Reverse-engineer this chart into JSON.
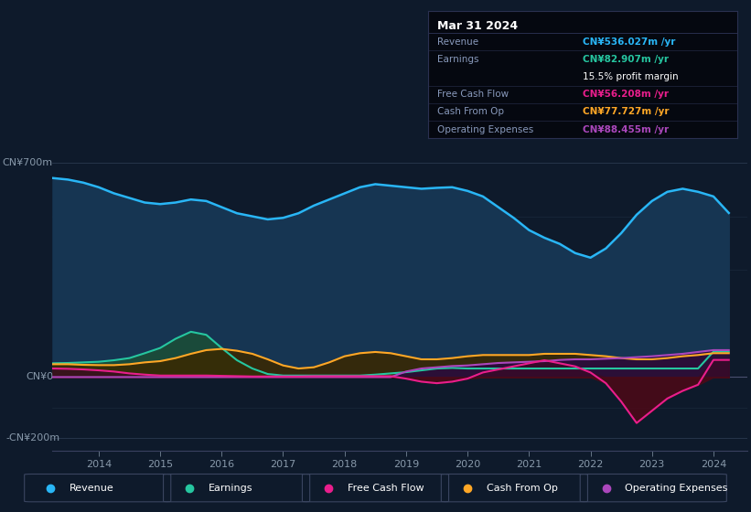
{
  "bg_color": "#0e1a2b",
  "plot_bg_color": "#0e1a2b",
  "ylim": [
    -240,
    780
  ],
  "xlim_start": 2013.25,
  "xlim_end": 2024.55,
  "xticks": [
    2014,
    2015,
    2016,
    2017,
    2018,
    2019,
    2020,
    2021,
    2022,
    2023,
    2024
  ],
  "colors": {
    "revenue": "#29b6f6",
    "earnings": "#26c6a0",
    "free_cash_flow": "#e91e8c",
    "cash_from_op": "#ffa726",
    "operating_expenses": "#ab47bc"
  },
  "tooltip": {
    "date": "Mar 31 2024",
    "revenue_label": "Revenue",
    "revenue_val": "CN¥536.027m /yr",
    "earnings_label": "Earnings",
    "earnings_val": "CN¥82.907m /yr",
    "profit_margin": "15.5% profit margin",
    "fcf_label": "Free Cash Flow",
    "fcf_val": "CN¥56.208m /yr",
    "cfop_label": "Cash From Op",
    "cfop_val": "CN¥77.727m /yr",
    "opex_label": "Operating Expenses",
    "opex_val": "CN¥88.455m /yr"
  },
  "revenue_x": [
    2013.25,
    2013.5,
    2013.75,
    2014.0,
    2014.25,
    2014.5,
    2014.75,
    2015.0,
    2015.25,
    2015.5,
    2015.75,
    2016.0,
    2016.25,
    2016.5,
    2016.75,
    2017.0,
    2017.25,
    2017.5,
    2017.75,
    2018.0,
    2018.25,
    2018.5,
    2018.75,
    2019.0,
    2019.25,
    2019.5,
    2019.75,
    2020.0,
    2020.25,
    2020.5,
    2020.75,
    2021.0,
    2021.25,
    2021.5,
    2021.75,
    2022.0,
    2022.25,
    2022.5,
    2022.75,
    2023.0,
    2023.25,
    2023.5,
    2023.75,
    2024.0,
    2024.25
  ],
  "revenue_y": [
    650,
    645,
    635,
    620,
    600,
    585,
    570,
    565,
    570,
    580,
    575,
    555,
    535,
    525,
    515,
    520,
    535,
    560,
    580,
    600,
    620,
    630,
    625,
    620,
    615,
    618,
    620,
    608,
    590,
    555,
    520,
    480,
    455,
    435,
    405,
    390,
    420,
    470,
    530,
    575,
    605,
    615,
    605,
    590,
    536
  ],
  "earnings_x": [
    2013.25,
    2013.5,
    2013.75,
    2014.0,
    2014.25,
    2014.5,
    2014.75,
    2015.0,
    2015.25,
    2015.5,
    2015.75,
    2016.0,
    2016.25,
    2016.5,
    2016.75,
    2017.0,
    2017.25,
    2017.5,
    2017.75,
    2018.0,
    2018.25,
    2018.5,
    2018.75,
    2019.0,
    2019.25,
    2019.5,
    2019.75,
    2020.0,
    2020.25,
    2020.5,
    2020.75,
    2021.0,
    2021.25,
    2021.5,
    2021.75,
    2022.0,
    2022.25,
    2022.5,
    2022.75,
    2023.0,
    2023.25,
    2023.5,
    2023.75,
    2024.0,
    2024.25
  ],
  "earnings_y": [
    45,
    46,
    48,
    50,
    55,
    62,
    78,
    95,
    125,
    148,
    138,
    95,
    55,
    28,
    10,
    5,
    5,
    5,
    5,
    5,
    5,
    8,
    12,
    16,
    22,
    28,
    30,
    28,
    28,
    28,
    28,
    28,
    28,
    28,
    28,
    28,
    28,
    28,
    28,
    28,
    28,
    28,
    28,
    83,
    83
  ],
  "fcf_x": [
    2013.25,
    2013.5,
    2013.75,
    2014.0,
    2014.25,
    2014.5,
    2014.75,
    2015.0,
    2015.25,
    2015.5,
    2015.75,
    2016.0,
    2016.25,
    2016.5,
    2016.75,
    2017.0,
    2017.25,
    2017.5,
    2017.75,
    2018.0,
    2018.25,
    2018.5,
    2018.75,
    2019.0,
    2019.25,
    2019.5,
    2019.75,
    2020.0,
    2020.25,
    2020.5,
    2020.75,
    2021.0,
    2021.25,
    2021.5,
    2021.75,
    2022.0,
    2022.25,
    2022.5,
    2022.75,
    2023.0,
    2023.25,
    2023.5,
    2023.75,
    2024.0,
    2024.25
  ],
  "fcf_y": [
    28,
    27,
    25,
    22,
    18,
    12,
    8,
    5,
    5,
    5,
    5,
    4,
    3,
    2,
    2,
    2,
    2,
    3,
    3,
    3,
    3,
    3,
    3,
    -5,
    -15,
    -20,
    -15,
    -5,
    15,
    25,
    35,
    45,
    55,
    45,
    35,
    15,
    -20,
    -80,
    -150,
    -110,
    -70,
    -45,
    -25,
    56,
    56
  ],
  "cfop_x": [
    2013.25,
    2013.5,
    2013.75,
    2014.0,
    2014.25,
    2014.5,
    2014.75,
    2015.0,
    2015.25,
    2015.5,
    2015.75,
    2016.0,
    2016.25,
    2016.5,
    2016.75,
    2017.0,
    2017.25,
    2017.5,
    2017.75,
    2018.0,
    2018.25,
    2018.5,
    2018.75,
    2019.0,
    2019.25,
    2019.5,
    2019.75,
    2020.0,
    2020.25,
    2020.5,
    2020.75,
    2021.0,
    2021.25,
    2021.5,
    2021.75,
    2022.0,
    2022.25,
    2022.5,
    2022.75,
    2023.0,
    2023.25,
    2023.5,
    2023.75,
    2024.0,
    2024.25
  ],
  "cfop_y": [
    42,
    42,
    40,
    39,
    39,
    42,
    48,
    52,
    62,
    76,
    88,
    92,
    86,
    76,
    58,
    38,
    28,
    32,
    48,
    68,
    78,
    82,
    78,
    68,
    58,
    58,
    62,
    68,
    72,
    72,
    72,
    72,
    76,
    76,
    76,
    72,
    68,
    62,
    58,
    58,
    62,
    68,
    72,
    78,
    78
  ],
  "opex_x": [
    2013.25,
    2013.5,
    2013.75,
    2014.0,
    2014.25,
    2014.5,
    2014.75,
    2015.0,
    2015.25,
    2015.5,
    2015.75,
    2016.0,
    2016.25,
    2016.5,
    2016.75,
    2017.0,
    2017.25,
    2017.5,
    2017.75,
    2018.0,
    2018.25,
    2018.5,
    2018.75,
    2019.0,
    2019.25,
    2019.5,
    2019.75,
    2020.0,
    2020.25,
    2020.5,
    2020.75,
    2021.0,
    2021.25,
    2021.5,
    2021.75,
    2022.0,
    2022.25,
    2022.5,
    2022.75,
    2023.0,
    2023.25,
    2023.5,
    2023.75,
    2024.0,
    2024.25
  ],
  "opex_y": [
    0,
    0,
    0,
    0,
    0,
    0,
    0,
    0,
    0,
    0,
    0,
    0,
    0,
    0,
    0,
    0,
    0,
    0,
    0,
    0,
    0,
    0,
    0,
    18,
    28,
    32,
    36,
    38,
    42,
    46,
    48,
    50,
    52,
    56,
    58,
    58,
    60,
    62,
    65,
    68,
    72,
    76,
    82,
    88,
    88
  ],
  "legend": [
    {
      "label": "Revenue",
      "color": "#29b6f6"
    },
    {
      "label": "Earnings",
      "color": "#26c6a0"
    },
    {
      "label": "Free Cash Flow",
      "color": "#e91e8c"
    },
    {
      "label": "Cash From Op",
      "color": "#ffa726"
    },
    {
      "label": "Operating Expenses",
      "color": "#ab47bc"
    }
  ]
}
